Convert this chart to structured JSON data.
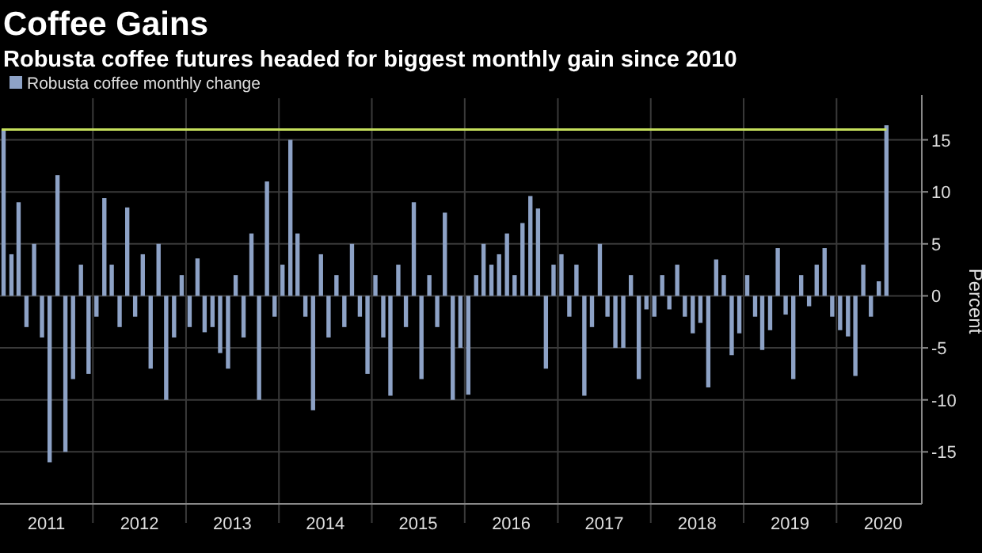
{
  "chart_data": {
    "type": "bar",
    "title": "Coffee Gains",
    "subtitle": "Robusta coffee futures headed for biggest monthly gain since 2010",
    "ylabel": "Percent",
    "x": [
      "2011-01-15",
      "2011-02-15",
      "2011-03-15",
      "2011-04-15",
      "2011-05-15",
      "2011-06-15",
      "2011-07-15",
      "2011-08-15",
      "2011-09-15",
      "2011-10-15",
      "2011-11-15",
      "2011-12-15",
      "2012-01-15",
      "2012-02-15",
      "2012-03-15",
      "2012-04-15",
      "2012-05-15",
      "2012-06-15",
      "2012-07-15",
      "2012-08-15",
      "2012-09-15",
      "2012-10-15",
      "2012-11-15",
      "2012-12-15",
      "2013-01-15",
      "2013-02-15",
      "2013-03-15",
      "2013-04-15",
      "2013-05-15",
      "2013-06-15",
      "2013-07-15",
      "2013-08-15",
      "2013-09-15",
      "2013-10-15",
      "2013-11-15",
      "2013-12-15",
      "2014-01-15",
      "2014-02-15",
      "2014-03-15",
      "2014-04-15",
      "2014-05-15",
      "2014-06-15",
      "2014-07-15",
      "2014-08-15",
      "2014-09-15",
      "2014-10-15",
      "2014-11-15",
      "2014-12-15",
      "2015-01-15",
      "2015-02-15",
      "2015-03-15",
      "2015-04-15",
      "2015-05-15",
      "2015-06-15",
      "2015-07-15",
      "2015-08-15",
      "2015-09-15",
      "2015-10-15",
      "2015-11-15",
      "2015-12-15",
      "2016-01-15",
      "2016-02-15",
      "2016-03-15",
      "2016-04-15",
      "2016-05-15",
      "2016-06-15",
      "2016-07-15",
      "2016-08-15",
      "2016-09-15",
      "2016-10-15",
      "2016-11-15",
      "2016-12-15",
      "2017-01-15",
      "2017-02-15",
      "2017-03-15",
      "2017-04-15",
      "2017-05-15",
      "2017-06-15",
      "2017-07-15",
      "2017-08-15",
      "2017-09-15",
      "2017-10-15",
      "2017-11-15",
      "2017-12-15",
      "2018-01-15",
      "2018-02-15",
      "2018-03-15",
      "2018-04-15",
      "2018-05-15",
      "2018-06-15",
      "2018-07-15",
      "2018-08-15",
      "2018-09-15",
      "2018-10-15",
      "2018-11-15",
      "2018-12-15",
      "2019-01-15",
      "2019-02-15",
      "2019-03-15",
      "2019-04-15",
      "2019-05-15",
      "2019-06-15",
      "2019-07-15",
      "2019-08-15",
      "2019-09-15",
      "2019-10-15",
      "2019-11-15",
      "2019-12-15",
      "2020-01-15",
      "2020-02-15",
      "2020-03-15",
      "2020-04-15",
      "2020-05-15",
      "2020-06-15",
      "2020-07-15"
    ],
    "series": [
      {
        "name": "Robusta coffee monthly change",
        "color": "#8da2c6",
        "values": [
          16,
          4,
          9,
          -3,
          5,
          -4,
          -16,
          11.6,
          -15,
          -8,
          3,
          -7.5,
          -2,
          9.4,
          3,
          -3,
          8.5,
          -2,
          4,
          -7,
          5,
          -10,
          -4,
          2,
          -3,
          3.6,
          -3.5,
          -3,
          -5.5,
          -7,
          2,
          -4,
          6,
          -10,
          11,
          -2,
          3,
          15,
          6,
          -2,
          -11,
          4,
          -4,
          2,
          -3,
          5,
          -2,
          -7.5,
          2,
          -4,
          -9.6,
          3,
          -3,
          9,
          -8,
          2,
          -3,
          8,
          -10,
          -5,
          -9.5,
          2,
          5,
          3,
          4,
          6,
          2,
          7,
          9.6,
          8.4,
          -7,
          3,
          4,
          -2,
          3,
          -9.6,
          -3,
          5,
          -2,
          -5,
          -5,
          2,
          -8,
          -1.3,
          -2,
          2,
          -1.3,
          3,
          -2,
          -3.6,
          -2.6,
          -8.8,
          3.5,
          2,
          -5.7,
          -3.6,
          2,
          -2,
          -5.2,
          -3.3,
          4.6,
          -1.8,
          -8,
          2,
          -1,
          3,
          4.6,
          -2,
          -3.3,
          -3.9,
          -7.7,
          3,
          -2,
          1.4,
          16.4
        ]
      }
    ],
    "xlim": [
      "2011-01-01",
      "2020-12-01"
    ],
    "xticks": [
      {
        "value": "2012-01-01",
        "label": null
      },
      {
        "value": "2013-01-01",
        "label": null
      },
      {
        "value": "2014-01-01",
        "label": null
      },
      {
        "value": "2015-01-01",
        "label": null
      },
      {
        "value": "2016-01-01",
        "label": null
      },
      {
        "value": "2017-01-01",
        "label": null
      },
      {
        "value": "2018-01-01",
        "label": null
      },
      {
        "value": "2019-01-01",
        "label": null
      },
      {
        "value": "2020-01-01",
        "label": null
      },
      {
        "value": "2011-07-02",
        "label": "2011"
      },
      {
        "value": "2012-07-02",
        "label": "2012"
      },
      {
        "value": "2013-07-02",
        "label": "2013"
      },
      {
        "value": "2014-07-02",
        "label": "2014"
      },
      {
        "value": "2015-07-02",
        "label": "2015"
      },
      {
        "value": "2016-07-02",
        "label": "2016"
      },
      {
        "value": "2017-07-02",
        "label": "2017"
      },
      {
        "value": "2018-07-02",
        "label": "2018"
      },
      {
        "value": "2019-07-02",
        "label": "2019"
      },
      {
        "value": "2020-07-02",
        "label": "2020"
      }
    ],
    "ylim": [
      -20,
      19
    ],
    "yticks": [
      -15,
      -10,
      -5,
      0,
      5,
      10,
      15
    ],
    "ref_lines": [
      {
        "axis": "y",
        "value": 16,
        "color": "#c6e05c"
      }
    ],
    "grid": true,
    "legend": "top left"
  }
}
